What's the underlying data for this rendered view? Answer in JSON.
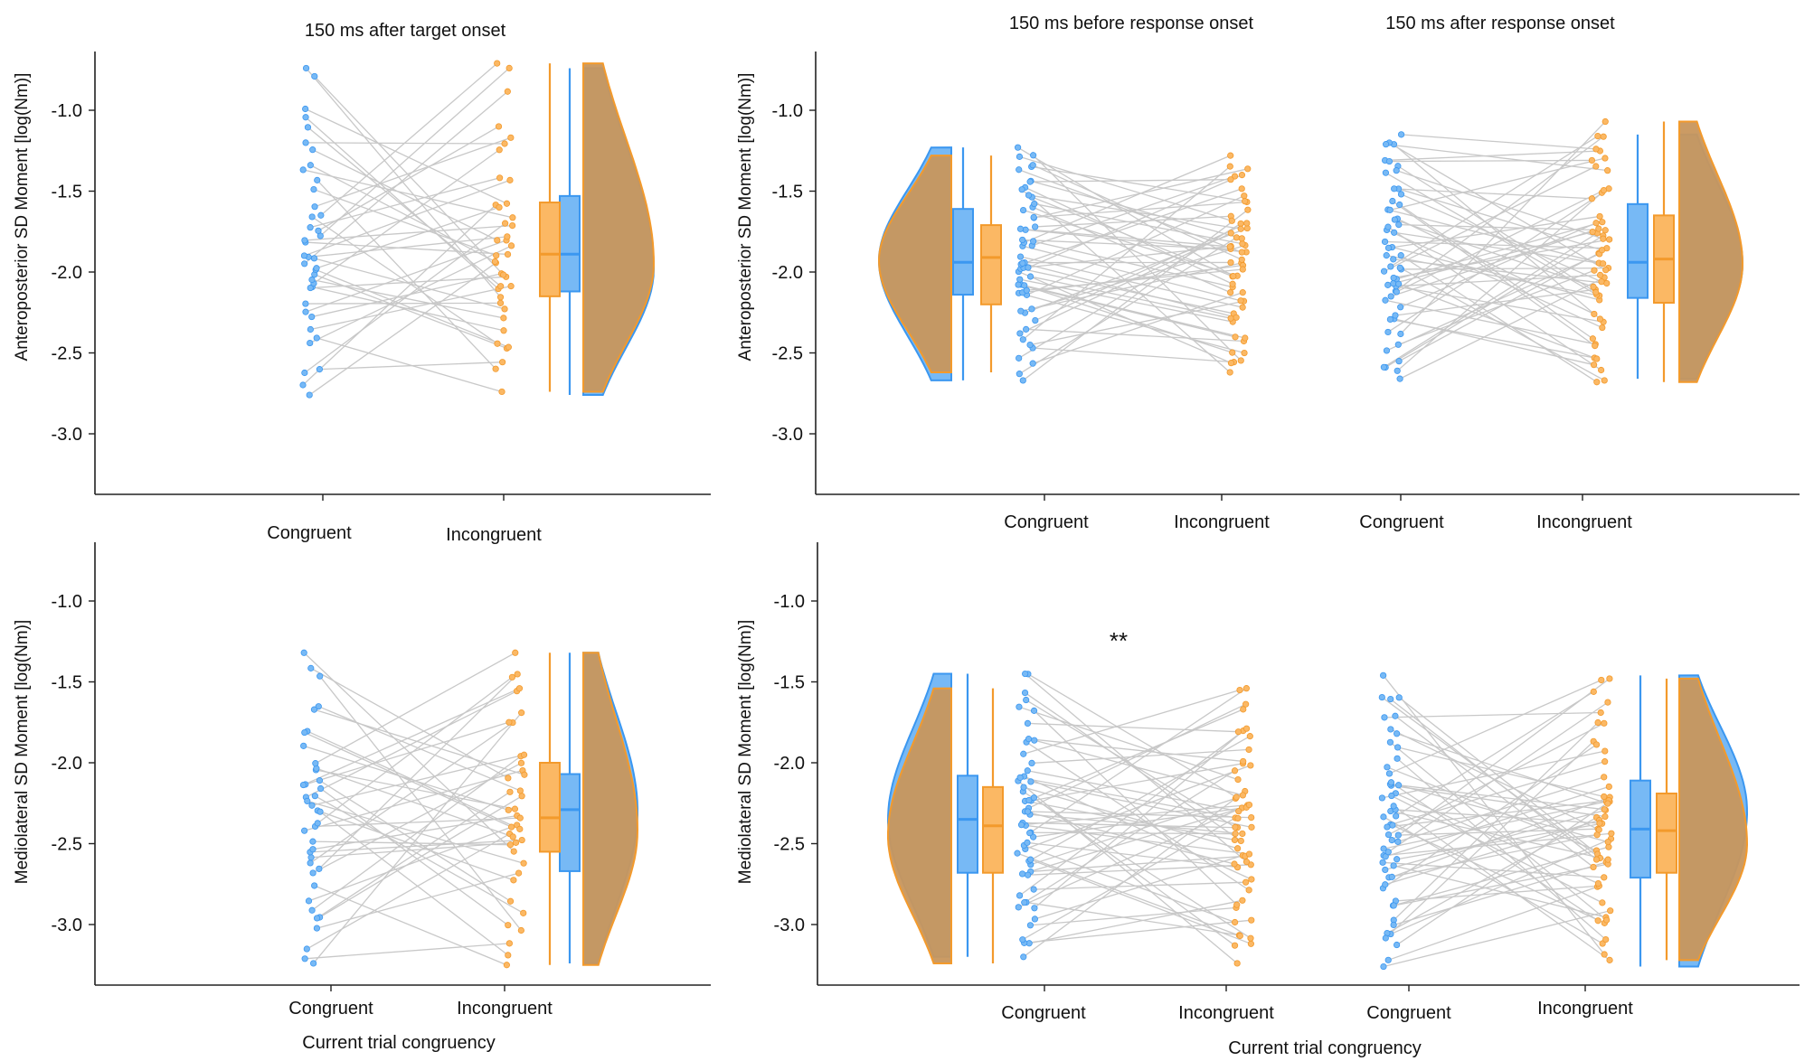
{
  "colors": {
    "congruent": "#3b97f0",
    "incongruent": "#f39a2c",
    "congruent_fill": "#77b9f5",
    "incongruent_fill": "#fbb864",
    "overlap_fill": "#c8965c",
    "pair_line": "#c8c8c8"
  },
  "chart_data": [
    {
      "type": "raincloud",
      "panel": "top-left",
      "title": "150 ms after target onset",
      "ylabel": "Anteroposterior SD Moment [log(Nm)]",
      "xlabel": "",
      "ylim": [
        -3.35,
        -0.65
      ],
      "yticks": [
        "-1.0",
        "-1.5",
        "-2.0",
        "-2.5",
        "-3.0"
      ],
      "windows": [
        {
          "title": "150 ms after target onset",
          "categories": [
            "Congruent",
            "Incongruent"
          ],
          "congruent": {
            "min": -2.76,
            "q1": -2.12,
            "median": -1.89,
            "q3": -1.53,
            "max": -0.74
          },
          "incongruent": {
            "min": -2.74,
            "q1": -2.15,
            "median": -1.89,
            "q3": -1.57,
            "max": -0.71
          },
          "congruent_mode": -1.98,
          "incongruent_mode": -1.95,
          "n_subjects": 40,
          "seed": 11
        }
      ]
    },
    {
      "type": "raincloud",
      "panel": "top-right",
      "title": "",
      "ylabel": "Anteroposterior SD Moment [log(Nm)]",
      "xlabel": "",
      "ylim": [
        -3.35,
        -0.65
      ],
      "yticks": [
        "-1.0",
        "-1.5",
        "-2.0",
        "-2.5",
        "-3.0"
      ],
      "windows": [
        {
          "title": "150 ms before response onset",
          "categories": [
            "Congruent",
            "Incongruent"
          ],
          "congruent": {
            "min": -2.67,
            "q1": -2.14,
            "median": -1.94,
            "q3": -1.61,
            "max": -1.23
          },
          "incongruent": {
            "min": -2.62,
            "q1": -2.2,
            "median": -1.91,
            "q3": -1.71,
            "max": -1.28
          },
          "congruent_mode": -1.93,
          "incongruent_mode": -1.93,
          "n_subjects": 55,
          "seed": 23
        },
        {
          "title": "150 ms after response onset",
          "categories": [
            "Congruent",
            "Incongruent"
          ],
          "congruent": {
            "min": -2.66,
            "q1": -2.16,
            "median": -1.94,
            "q3": -1.58,
            "max": -1.15
          },
          "incongruent": {
            "min": -2.68,
            "q1": -2.19,
            "median": -1.92,
            "q3": -1.65,
            "max": -1.07
          },
          "congruent_mode": -1.95,
          "incongruent_mode": -1.95,
          "n_subjects": 55,
          "seed": 37
        }
      ]
    },
    {
      "type": "raincloud",
      "panel": "bottom-left",
      "title": "",
      "ylabel": "Mediolateral SD Moment [log(Nm)]",
      "xlabel": "Current trial congruency",
      "ylim": [
        -3.35,
        -0.65
      ],
      "yticks": [
        "-1.0",
        "-1.5",
        "-2.0",
        "-2.5",
        "-3.0"
      ],
      "windows": [
        {
          "title": "",
          "categories": [
            "Congruent",
            "Incongruent"
          ],
          "congruent": {
            "min": -3.24,
            "q1": -2.67,
            "median": -2.29,
            "q3": -2.07,
            "max": -1.32
          },
          "incongruent": {
            "min": -3.25,
            "q1": -2.55,
            "median": -2.34,
            "q3": -2.0,
            "max": -1.32
          },
          "congruent_mode": -2.3,
          "incongruent_mode": -2.42,
          "n_subjects": 40,
          "seed": 53
        }
      ]
    },
    {
      "type": "raincloud",
      "panel": "bottom-right",
      "title": "",
      "ylabel": "Mediolateral SD Moment [log(Nm)]",
      "xlabel": "Current trial congruency",
      "ylim": [
        -3.35,
        -0.65
      ],
      "yticks": [
        "-1.0",
        "-1.5",
        "-2.0",
        "-2.5",
        "-3.0"
      ],
      "annotation": "**",
      "windows": [
        {
          "title": "",
          "categories": [
            "Congruent",
            "Incongruent"
          ],
          "congruent": {
            "min": -3.2,
            "q1": -2.68,
            "median": -2.35,
            "q3": -2.08,
            "max": -1.45
          },
          "incongruent": {
            "min": -3.24,
            "q1": -2.68,
            "median": -2.39,
            "q3": -2.15,
            "max": -1.54
          },
          "congruent_mode": -2.35,
          "incongruent_mode": -2.45,
          "n_subjects": 55,
          "seed": 71
        },
        {
          "title": "",
          "categories": [
            "Congruent",
            "Incongruent"
          ],
          "congruent": {
            "min": -3.26,
            "q1": -2.71,
            "median": -2.41,
            "q3": -2.11,
            "max": -1.46
          },
          "incongruent": {
            "min": -3.22,
            "q1": -2.68,
            "median": -2.42,
            "q3": -2.19,
            "max": -1.48
          },
          "congruent_mode": -2.3,
          "incongruent_mode": -2.5,
          "n_subjects": 55,
          "seed": 89
        }
      ]
    }
  ]
}
